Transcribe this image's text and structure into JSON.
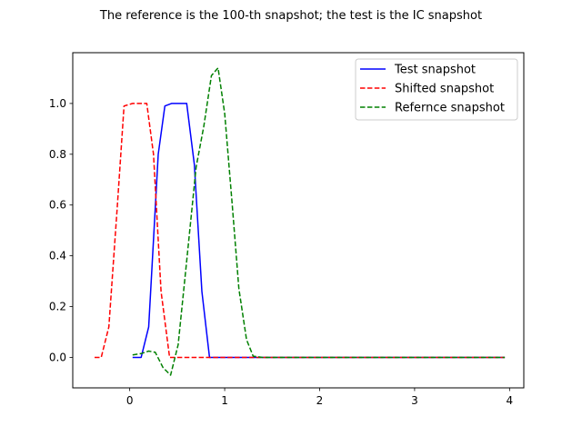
{
  "chart_data": {
    "type": "line",
    "title": "The reference is the 100-th snapshot; the test is the IC snapshot",
    "xlabel": "",
    "ylabel": "",
    "xlim": [
      -0.6,
      4.15
    ],
    "ylim": [
      -0.12,
      1.2
    ],
    "xticks": [
      0,
      1,
      2,
      3,
      4
    ],
    "yticks": [
      0.0,
      0.2,
      0.4,
      0.6,
      0.8,
      1.0
    ],
    "grid": false,
    "legend_position": "top-right",
    "series": [
      {
        "name": "Test snapshot",
        "color": "#0000ff",
        "style": "solid",
        "x": [
          0.03,
          0.12,
          0.2,
          0.3,
          0.37,
          0.44,
          0.52,
          0.6,
          0.68,
          0.76,
          0.84,
          0.92,
          1.0,
          1.5,
          2.0,
          2.5,
          3.0,
          3.5,
          3.95
        ],
        "y": [
          0.0,
          0.0,
          0.12,
          0.8,
          0.99,
          1.0,
          1.0,
          1.0,
          0.76,
          0.26,
          0.0,
          0.0,
          0.0,
          0.0,
          0.0,
          0.0,
          0.0,
          0.0,
          0.0
        ]
      },
      {
        "name": "Shifted snapshot",
        "color": "#ff0000",
        "style": "dashed",
        "x": [
          -0.37,
          -0.3,
          -0.22,
          -0.13,
          -0.06,
          0.03,
          0.1,
          0.18,
          0.25,
          0.33,
          0.42,
          0.5,
          0.7,
          1.0,
          1.5,
          2.0,
          2.5,
          3.0,
          3.5,
          3.95
        ],
        "y": [
          0.0,
          0.0,
          0.12,
          0.6,
          0.99,
          1.0,
          1.0,
          1.0,
          0.8,
          0.26,
          0.0,
          0.0,
          0.0,
          0.0,
          0.0,
          0.0,
          0.0,
          0.0,
          0.0,
          0.0
        ]
      },
      {
        "name": "Refernce snapshot",
        "color": "#008000",
        "style": "dashed",
        "x": [
          0.03,
          0.12,
          0.2,
          0.27,
          0.35,
          0.43,
          0.51,
          0.6,
          0.7,
          0.78,
          0.86,
          0.93,
          1.0,
          1.08,
          1.15,
          1.23,
          1.3,
          1.4,
          2.0,
          2.5,
          3.0,
          3.5,
          3.95
        ],
        "y": [
          0.01,
          0.015,
          0.025,
          0.02,
          -0.04,
          -0.07,
          0.05,
          0.38,
          0.75,
          0.91,
          1.11,
          1.14,
          0.96,
          0.6,
          0.27,
          0.07,
          0.005,
          0.0,
          0.0,
          0.0,
          0.0,
          0.0,
          0.0
        ]
      }
    ]
  }
}
